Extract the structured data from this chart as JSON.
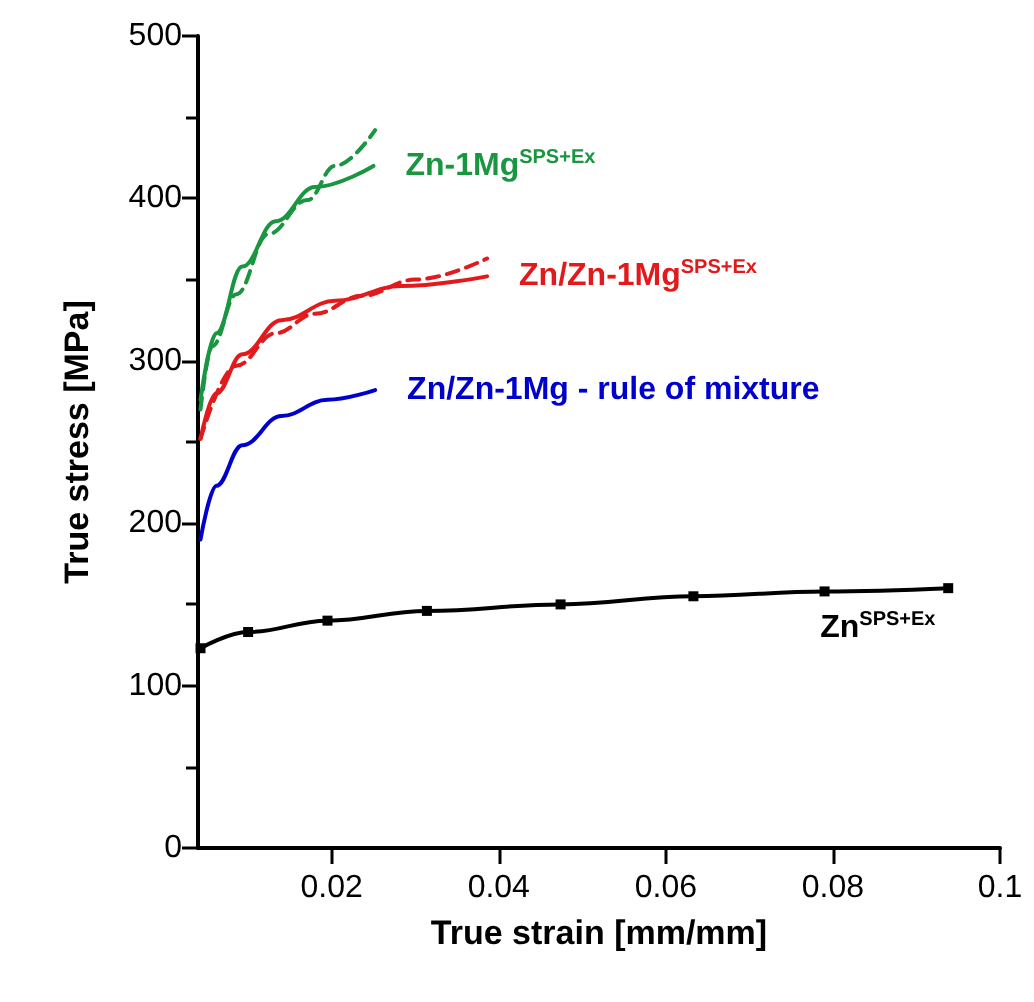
{
  "chart_data": {
    "type": "line",
    "xlabel": "True strain [mm/mm]",
    "ylabel": "True stress [MPa]",
    "xlim": [
      0.004,
      0.1
    ],
    "xticks": [
      0.02,
      0.04,
      0.06,
      0.08,
      0.1
    ],
    "ylim": [
      0,
      500
    ],
    "yticks": [
      0,
      100,
      200,
      300,
      400,
      500
    ],
    "grid": false,
    "legend": false,
    "marker": "none",
    "series": [
      {
        "name": "Zn-1Mg$^{SPS+Ex}$",
        "color": "#1a9641",
        "line_style": "solid",
        "x": [
          0.0043,
          0.0062,
          0.0093,
          0.0133,
          0.018,
          0.025
        ],
        "values": [
          276,
          317,
          358,
          386,
          407,
          420
        ]
      },
      {
        "color": "#1a9641",
        "line_style": "dashed",
        "x": [
          0.0043,
          0.0057,
          0.0086,
          0.0124,
          0.0171,
          0.0204,
          0.0252
        ],
        "values": [
          270,
          309,
          341,
          378,
          399,
          420,
          442
        ]
      },
      {
        "name": "Zn/Zn-1Mg$^{SPS+Ex}$",
        "color": "#e31a1c",
        "line_style": "solid",
        "x": [
          0.0043,
          0.0062,
          0.0093,
          0.014,
          0.0204,
          0.0283,
          0.0386
        ],
        "values": [
          252,
          280,
          304,
          325,
          337,
          346,
          352
        ]
      },
      {
        "color": "#e31a1c",
        "line_style": "dashed",
        "x": [
          0.0043,
          0.0086,
          0.0133,
          0.018,
          0.0236,
          0.03,
          0.0386
        ],
        "values": [
          252,
          297,
          317,
          329,
          340,
          350,
          363
        ]
      },
      {
        "name": "Zn/Zn-1Mg - rule of mixture",
        "color": "#0000cc",
        "line_style": "solid",
        "x": [
          0.0043,
          0.0062,
          0.0093,
          0.014,
          0.0195,
          0.0252
        ],
        "values": [
          190,
          223,
          248,
          266,
          276,
          282
        ]
      },
      {
        "name": "Zn$^{SPS+Ex}$",
        "color": "#000000",
        "line_style": "solid",
        "marker": "square",
        "x": [
          0.0043,
          0.01,
          0.0195,
          0.0314,
          0.0474,
          0.0633,
          0.079,
          0.0938
        ],
        "values": [
          123,
          133,
          140,
          146,
          150,
          155,
          158,
          160
        ]
      }
    ]
  }
}
